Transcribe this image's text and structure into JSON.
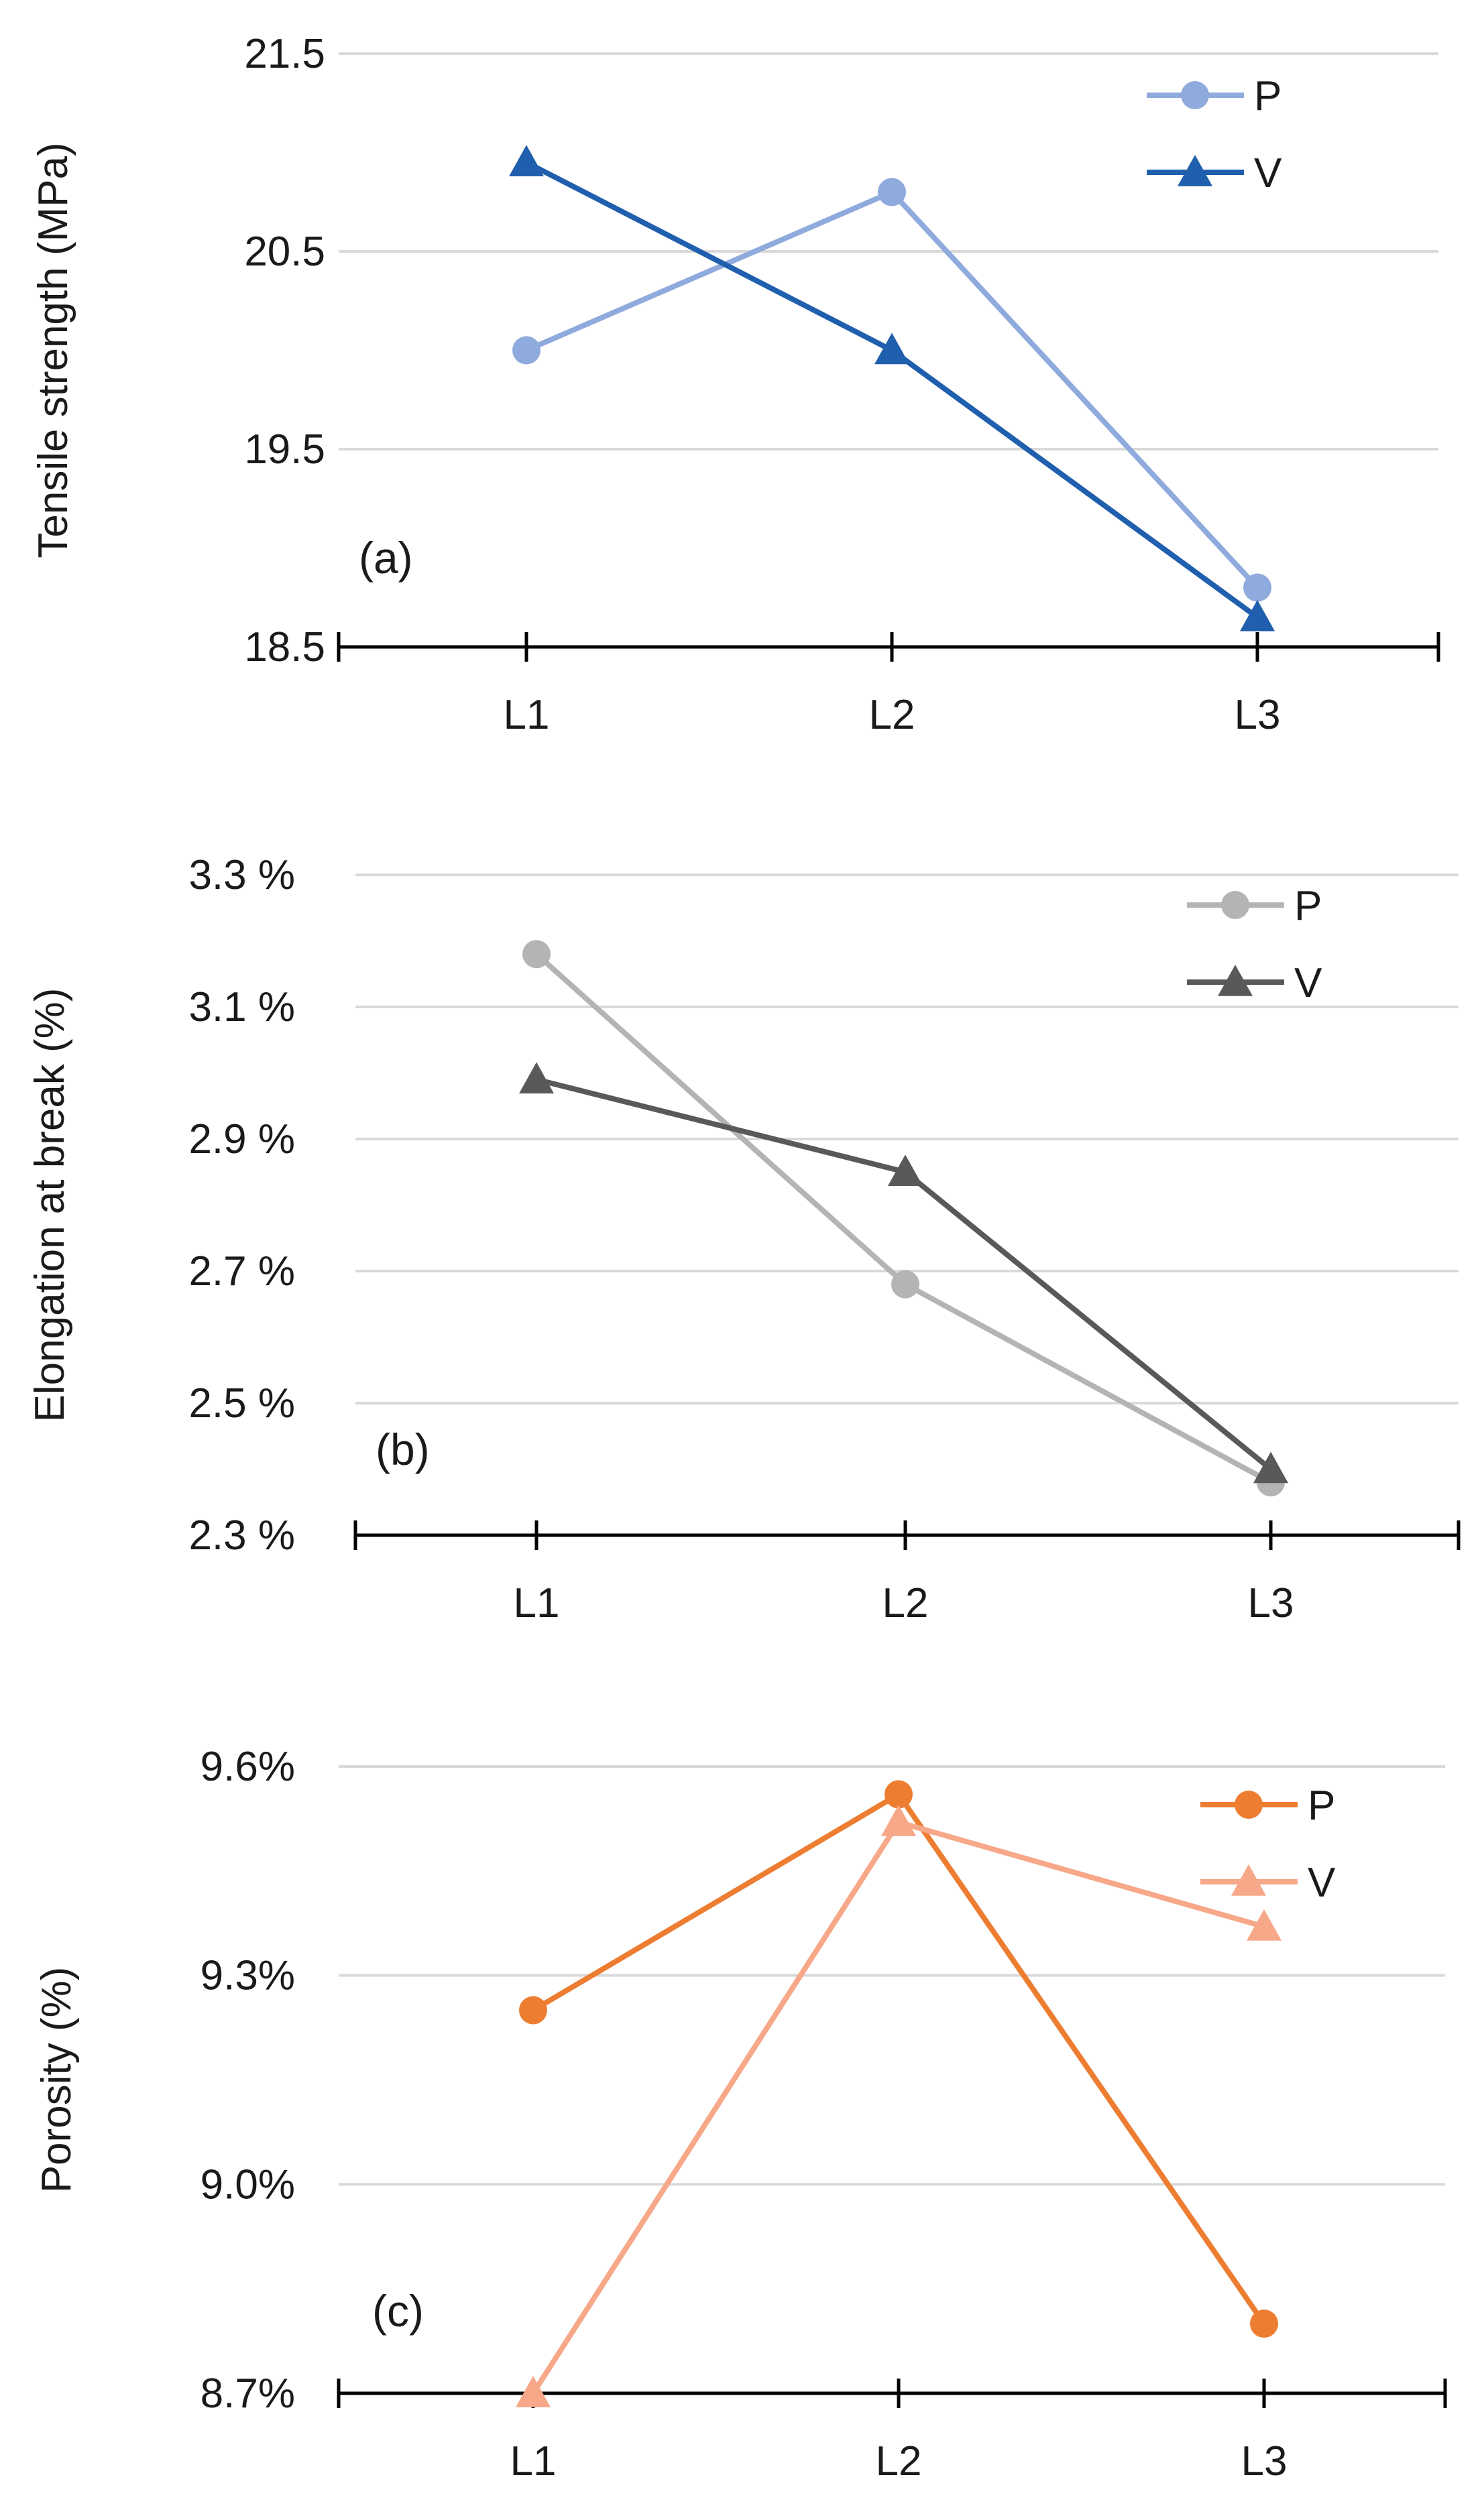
{
  "chart_data": [
    {
      "type": "line",
      "panel_label": "(a)",
      "ylabel": "Tensile strength (MPa)",
      "categories": [
        "L1",
        "L2",
        "L3"
      ],
      "y_ticks": [
        "18.5",
        "19.5",
        "20.5",
        "21.5"
      ],
      "ylim": [
        18.5,
        21.5
      ],
      "grid": true,
      "legend_position": "top-right",
      "series": [
        {
          "name": "P",
          "marker": "circle",
          "color": "#8faadc",
          "values": [
            20.0,
            20.8,
            18.8
          ]
        },
        {
          "name": "V",
          "marker": "triangle",
          "color": "#1f5fad",
          "values": [
            20.95,
            20.0,
            18.65
          ]
        }
      ]
    },
    {
      "type": "line",
      "panel_label": "(b)",
      "ylabel": "Elongation at break (%)",
      "categories": [
        "L1",
        "L2",
        "L3"
      ],
      "y_ticks": [
        "2.3 %",
        "2.5 %",
        "2.7 %",
        "2.9 %",
        "3.1 %",
        "3.3 %"
      ],
      "ylim": [
        2.3,
        3.3
      ],
      "grid": true,
      "legend_position": "top-right",
      "series": [
        {
          "name": "P",
          "marker": "circle",
          "color": "#b4b4b4",
          "values": [
            3.18,
            2.68,
            2.38
          ]
        },
        {
          "name": "V",
          "marker": "triangle",
          "color": "#595959",
          "values": [
            2.99,
            2.85,
            2.4
          ]
        }
      ]
    },
    {
      "type": "line",
      "panel_label": "(c)",
      "ylabel": "Porosity (%)",
      "categories": [
        "L1",
        "L2",
        "L3"
      ],
      "y_ticks": [
        "8.7%",
        "9.0%",
        "9.3%",
        "9.6%"
      ],
      "ylim": [
        8.7,
        9.6
      ],
      "grid": true,
      "legend_position": "top-right",
      "series": [
        {
          "name": "P",
          "marker": "circle",
          "color": "#ed7d31",
          "values": [
            9.25,
            9.56,
            8.8
          ]
        },
        {
          "name": "V",
          "marker": "triangle",
          "color": "#f7a888",
          "values": [
            8.7,
            9.52,
            9.37
          ]
        }
      ]
    }
  ]
}
